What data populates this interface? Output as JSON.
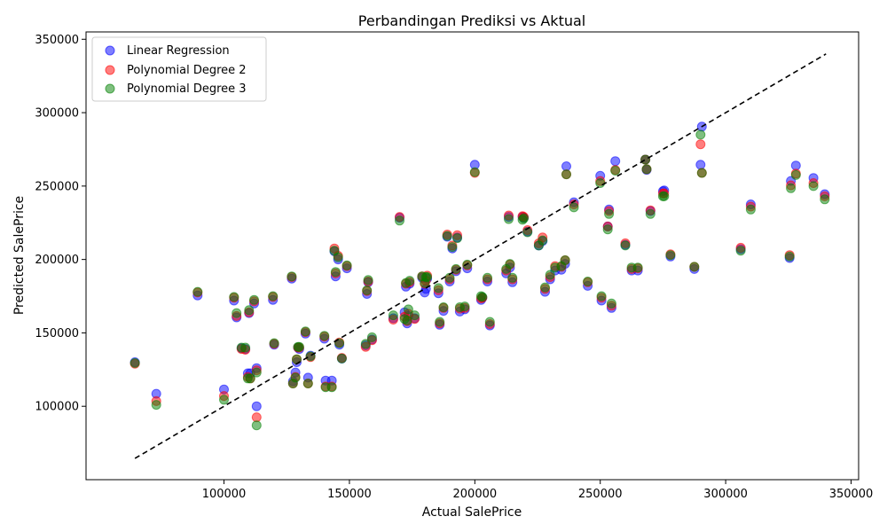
{
  "chart_data": {
    "type": "scatter",
    "title": "Perbandingan Prediksi vs Aktual",
    "xlabel": "Actual SalePrice",
    "ylabel": "Predicted SalePrice",
    "xlim": [
      45000,
      353000
    ],
    "ylim": [
      50000,
      355000
    ],
    "xticks": [
      100000,
      150000,
      200000,
      250000,
      300000,
      350000
    ],
    "yticks": [
      100000,
      150000,
      200000,
      250000,
      300000,
      350000
    ],
    "xtick_labels": [
      "100000",
      "150000",
      "200000",
      "250000",
      "300000",
      "350000"
    ],
    "ytick_labels": [
      "100000",
      "150000",
      "200000",
      "250000",
      "300000",
      "350000"
    ],
    "grid": false,
    "legend_position": "top-left",
    "reference_line": {
      "style": "dashed",
      "color": "#000000",
      "x": [
        64500,
        340000
      ],
      "y": [
        64500,
        340000
      ]
    },
    "x": [
      64500,
      73000,
      89500,
      100000,
      104000,
      105000,
      107000,
      108500,
      109500,
      110000,
      110500,
      112000,
      113000,
      113000,
      119500,
      120000,
      127000,
      127500,
      128500,
      129000,
      129500,
      130000,
      132500,
      133500,
      134500,
      140000,
      140500,
      143000,
      144000,
      144500,
      145500,
      146000,
      147000,
      149000,
      156500,
      157000,
      157500,
      159000,
      167500,
      170000,
      172000,
      172500,
      173000,
      173500,
      174000,
      176000,
      179000,
      180000,
      180500,
      181000,
      185500,
      186000,
      187500,
      189000,
      190000,
      191000,
      192500,
      193000,
      194000,
      196000,
      197000,
      200000,
      202500,
      203000,
      205000,
      206000,
      212500,
      213500,
      214000,
      215000,
      219000,
      219500,
      221000,
      225500,
      227000,
      228000,
      230000,
      232000,
      234500,
      236000,
      236500,
      239500,
      245000,
      250000,
      250500,
      253000,
      253500,
      254500,
      256000,
      260000,
      262500,
      265000,
      268000,
      268500,
      270000,
      275000,
      275500,
      278000,
      287500,
      290000,
      290500,
      306000,
      310000,
      325500,
      326000,
      328000,
      335000,
      339500
    ],
    "series": [
      {
        "name": "Linear Regression",
        "color": "#0000ff",
        "values": [
          130000,
          108500,
          175500,
          111500,
          172000,
          160500,
          139500,
          139000,
          122500,
          163500,
          122500,
          170000,
          126000,
          100000,
          172500,
          142000,
          187000,
          117000,
          123000,
          130000,
          140000,
          139000,
          149500,
          119500,
          134500,
          146000,
          117500,
          117500,
          205500,
          188500,
          200000,
          142000,
          132500,
          194000,
          141500,
          176500,
          184500,
          145500,
          160000,
          228500,
          164000,
          181500,
          156500,
          161500,
          183500,
          160000,
          187500,
          177500,
          180000,
          187000,
          177000,
          155500,
          165000,
          215500,
          185000,
          207500,
          192000,
          215000,
          164500,
          166000,
          194000,
          264500,
          172500,
          174000,
          185000,
          155000,
          190500,
          229000,
          194500,
          184500,
          229000,
          228500,
          219000,
          209500,
          212500,
          178000,
          186500,
          192500,
          193000,
          197000,
          263500,
          239000,
          182000,
          257000,
          172000,
          222500,
          234000,
          167000,
          267000,
          210000,
          192500,
          192500,
          268000,
          261000,
          233000,
          246500,
          247000,
          202000,
          193500,
          264500,
          290500,
          207000,
          237500,
          201000,
          253500,
          264000,
          255500,
          244500
        ]
      },
      {
        "name": "Polynomial Degree 2",
        "color": "#ff0000",
        "values": [
          129000,
          103500,
          177500,
          107000,
          174000,
          161500,
          139000,
          138500,
          120000,
          164000,
          119000,
          171500,
          124500,
          92500,
          174500,
          142500,
          188000,
          115500,
          120000,
          132000,
          140000,
          140000,
          150500,
          115500,
          133500,
          147500,
          113500,
          113500,
          207500,
          190500,
          202500,
          143500,
          133000,
          195500,
          140500,
          178500,
          185000,
          145000,
          159000,
          229000,
          161000,
          183500,
          158000,
          163000,
          184500,
          159500,
          188500,
          183500,
          185500,
          189000,
          179000,
          156500,
          167000,
          217000,
          186500,
          209500,
          193000,
          216500,
          166500,
          167000,
          196000,
          259000,
          173500,
          174000,
          186500,
          156000,
          192500,
          230000,
          196500,
          186500,
          229500,
          229000,
          220000,
          211000,
          215000,
          180000,
          188000,
          195500,
          195000,
          199500,
          258000,
          237500,
          184500,
          253500,
          174000,
          222500,
          233000,
          168500,
          261000,
          211000,
          193500,
          194000,
          268000,
          261500,
          233500,
          245000,
          245000,
          203500,
          195000,
          278500,
          259000,
          208000,
          236000,
          203000,
          250500,
          258500,
          252000,
          243000
        ]
      },
      {
        "name": "Polynomial Degree 3",
        "color": "#008000",
        "values": [
          129500,
          101000,
          178000,
          104500,
          174500,
          163500,
          140000,
          140000,
          119000,
          165500,
          119000,
          172500,
          123000,
          87000,
          175000,
          143000,
          188500,
          115500,
          119500,
          132000,
          140500,
          140500,
          151000,
          115500,
          134000,
          148000,
          113000,
          113000,
          206000,
          191500,
          201500,
          143000,
          132500,
          196000,
          142500,
          179000,
          186000,
          147000,
          162000,
          226500,
          159500,
          184000,
          158500,
          166000,
          185500,
          162000,
          188500,
          184000,
          188000,
          188000,
          180500,
          157500,
          167500,
          216000,
          187500,
          208500,
          193500,
          214500,
          167500,
          168000,
          196500,
          259500,
          175000,
          174500,
          187500,
          157500,
          193500,
          227500,
          197000,
          187500,
          227000,
          228000,
          218500,
          209500,
          213000,
          181000,
          189500,
          194500,
          195500,
          199500,
          258000,
          235500,
          185000,
          252000,
          175000,
          220500,
          231000,
          170000,
          260500,
          209500,
          194500,
          194500,
          268000,
          261500,
          231000,
          243000,
          243000,
          203000,
          195000,
          285000,
          259000,
          206000,
          234000,
          202000,
          248500,
          257500,
          250000,
          241000
        ]
      }
    ]
  }
}
